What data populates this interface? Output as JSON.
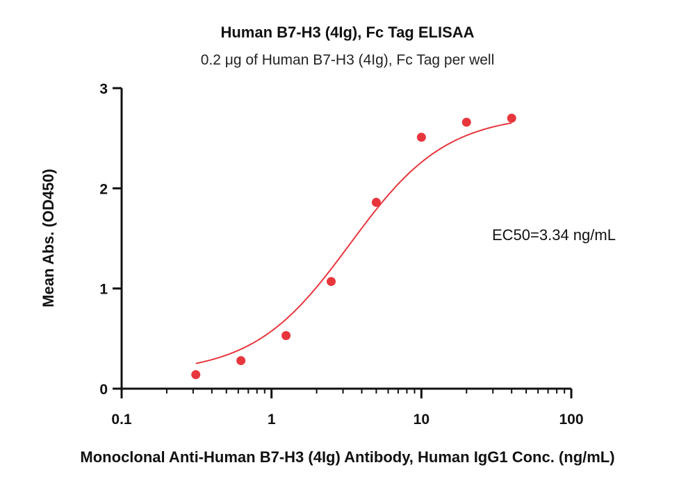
{
  "chart_data": {
    "type": "scatter",
    "title": "Human B7-H3 (4Ig), Fc Tag ELISAA",
    "subtitle": "0.2 μg of Human B7-H3 (4Ig), Fc Tag per well",
    "xlabel": "Monoclonal Anti-Human B7-H3 (4Ig) Antibody, Human IgG1 Conc. (ng/mL)",
    "ylabel": "Mean Abs. (OD450)",
    "x_scale": "log",
    "xlim": [
      0.1,
      100
    ],
    "ylim": [
      0,
      3
    ],
    "x_ticks": [
      "0.1",
      "1",
      "10",
      "100"
    ],
    "y_ticks": [
      "0",
      "1",
      "2",
      "3"
    ],
    "annotation": "EC50=3.34 ng/mL",
    "color": "#e8363d",
    "series": [
      {
        "x": [
          0.3125,
          0.625,
          1.25,
          2.5,
          5,
          10,
          20,
          40
        ],
        "y": [
          0.14,
          0.28,
          0.53,
          1.07,
          1.86,
          2.51,
          2.66,
          2.7
        ]
      }
    ],
    "fit": {
      "bottom": 0.15,
      "top": 2.74,
      "ec50": 3.34,
      "hill": 1.35
    }
  }
}
